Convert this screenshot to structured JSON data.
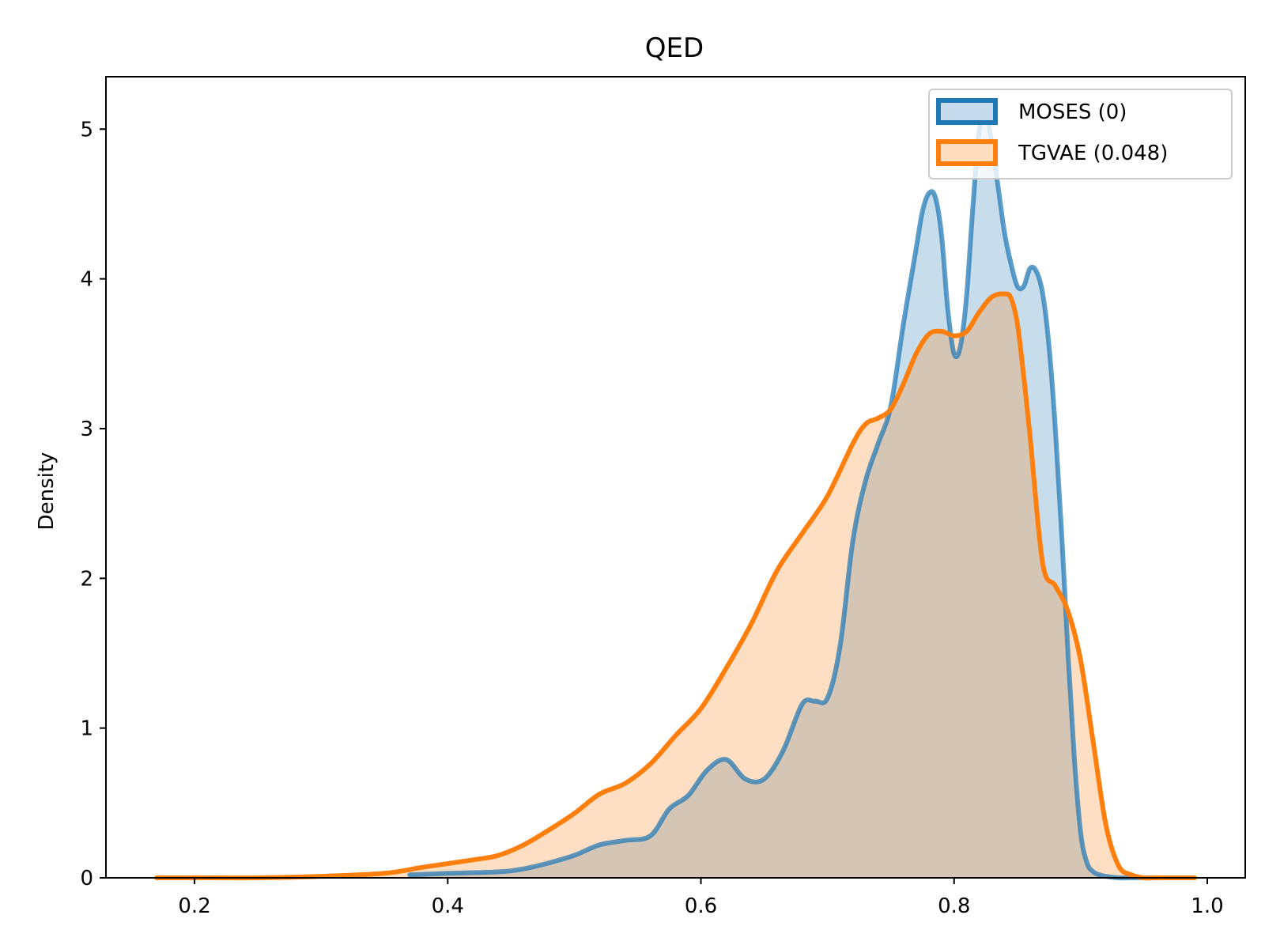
{
  "chart_data": {
    "type": "area",
    "title": "QED",
    "xlabel": "",
    "ylabel": "Density",
    "xlim": [
      0.13,
      1.03
    ],
    "ylim": [
      0,
      5.35
    ],
    "xticks": [
      0.2,
      0.4,
      0.6,
      0.8,
      1.0
    ],
    "xtick_labels": [
      "0.2",
      "0.4",
      "0.6",
      "0.8",
      "1.0"
    ],
    "yticks": [
      0,
      1,
      2,
      3,
      4,
      5
    ],
    "ytick_labels": [
      "0",
      "1",
      "2",
      "3",
      "4",
      "5"
    ],
    "grid": false,
    "legend_position": "top-right",
    "series": [
      {
        "name": "MOSES (0)",
        "color": "#1f77b4",
        "fill": "#c6dbed",
        "x": [
          0.37,
          0.4,
          0.44,
          0.46,
          0.48,
          0.5,
          0.52,
          0.54,
          0.56,
          0.575,
          0.59,
          0.605,
          0.62,
          0.635,
          0.65,
          0.665,
          0.68,
          0.69,
          0.7,
          0.71,
          0.72,
          0.73,
          0.74,
          0.75,
          0.76,
          0.77,
          0.775,
          0.78,
          0.785,
          0.79,
          0.795,
          0.8,
          0.805,
          0.81,
          0.815,
          0.82,
          0.825,
          0.83,
          0.835,
          0.84,
          0.845,
          0.85,
          0.855,
          0.86,
          0.865,
          0.87,
          0.875,
          0.88,
          0.885,
          0.89,
          0.895,
          0.9,
          0.905,
          0.91,
          0.915,
          0.92,
          0.93,
          0.94,
          0.95,
          0.955,
          0.96,
          0.965,
          0.97
        ],
        "y": [
          0.02,
          0.03,
          0.04,
          0.06,
          0.1,
          0.15,
          0.22,
          0.25,
          0.28,
          0.46,
          0.55,
          0.72,
          0.79,
          0.66,
          0.66,
          0.85,
          1.16,
          1.18,
          1.2,
          1.55,
          2.25,
          2.65,
          2.9,
          3.15,
          3.7,
          4.2,
          4.45,
          4.57,
          4.55,
          4.3,
          3.8,
          3.5,
          3.55,
          3.9,
          4.5,
          5.0,
          5.1,
          4.9,
          4.6,
          4.3,
          4.1,
          3.95,
          3.95,
          4.07,
          4.05,
          3.9,
          3.55,
          3.0,
          2.3,
          1.5,
          0.8,
          0.3,
          0.1,
          0.04,
          0.02,
          0.01,
          0.0,
          0.0,
          0.0,
          0.0,
          0.0,
          0.0,
          0.0
        ]
      },
      {
        "name": "TGVAE (0.048)",
        "color": "#ff7f0e",
        "fill": "#ffddbf",
        "x": [
          0.17,
          0.2,
          0.25,
          0.3,
          0.35,
          0.38,
          0.42,
          0.44,
          0.46,
          0.48,
          0.5,
          0.52,
          0.54,
          0.56,
          0.58,
          0.6,
          0.62,
          0.64,
          0.66,
          0.68,
          0.7,
          0.72,
          0.73,
          0.74,
          0.75,
          0.76,
          0.77,
          0.78,
          0.79,
          0.8,
          0.81,
          0.82,
          0.83,
          0.84,
          0.845,
          0.85,
          0.855,
          0.86,
          0.87,
          0.88,
          0.89,
          0.9,
          0.91,
          0.92,
          0.93,
          0.94,
          0.95,
          0.96,
          0.97,
          0.98,
          0.99
        ],
        "y": [
          0.0,
          0.0,
          0.0,
          0.01,
          0.03,
          0.07,
          0.12,
          0.15,
          0.22,
          0.32,
          0.43,
          0.56,
          0.63,
          0.76,
          0.95,
          1.13,
          1.4,
          1.7,
          2.05,
          2.3,
          2.55,
          2.9,
          3.03,
          3.07,
          3.13,
          3.3,
          3.5,
          3.63,
          3.65,
          3.62,
          3.65,
          3.78,
          3.88,
          3.9,
          3.87,
          3.7,
          3.35,
          2.95,
          2.1,
          1.95,
          1.78,
          1.45,
          0.9,
          0.35,
          0.08,
          0.02,
          0.0,
          0.0,
          0.0,
          0.0,
          0.0
        ]
      }
    ]
  }
}
